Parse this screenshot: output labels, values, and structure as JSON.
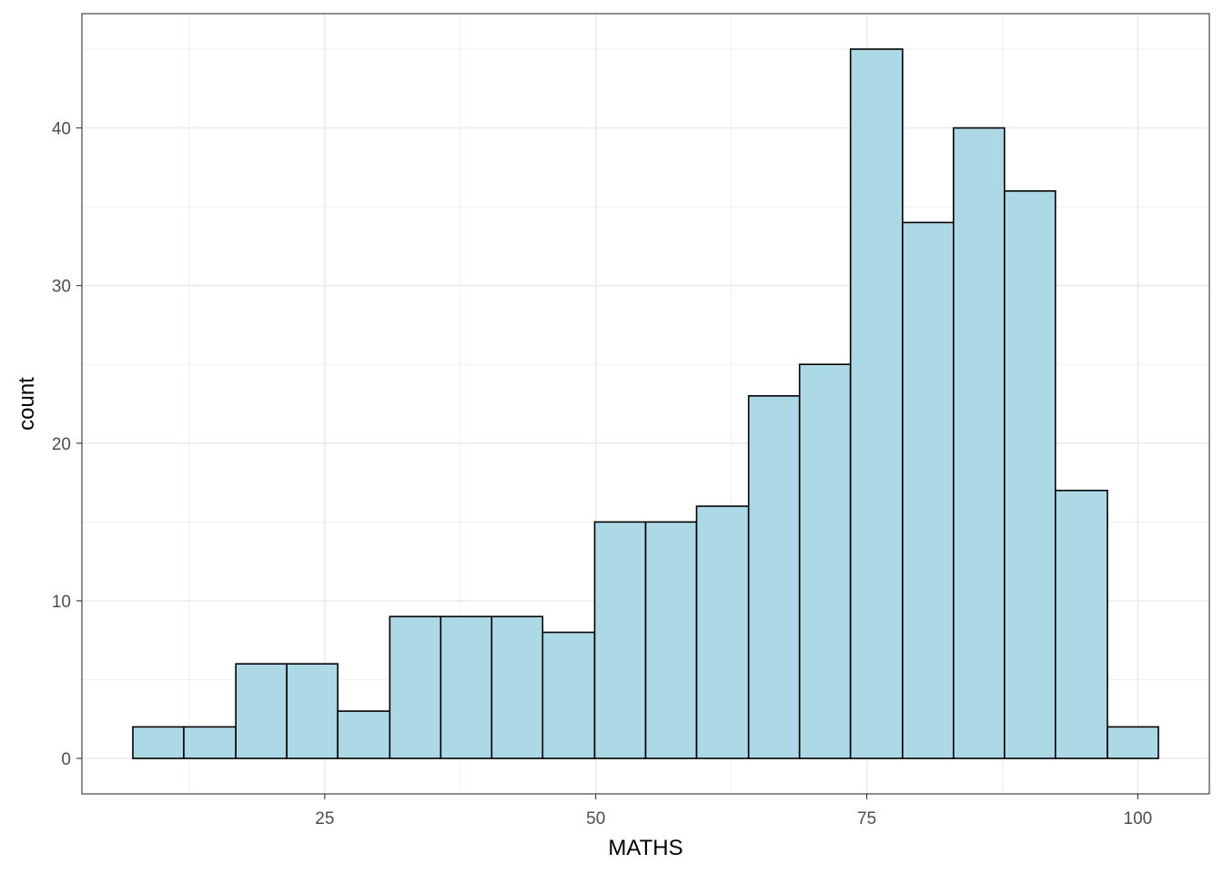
{
  "chart_data": {
    "type": "bar",
    "title": "",
    "xlabel": "MATHS",
    "ylabel": "count",
    "bins": [
      {
        "x0": 7.3,
        "x1": 12.0,
        "count": 2
      },
      {
        "x0": 12.0,
        "x1": 16.8,
        "count": 2
      },
      {
        "x0": 16.8,
        "x1": 21.5,
        "count": 6
      },
      {
        "x0": 21.5,
        "x1": 26.2,
        "count": 6
      },
      {
        "x0": 26.2,
        "x1": 31.0,
        "count": 3
      },
      {
        "x0": 31.0,
        "x1": 35.7,
        "count": 9
      },
      {
        "x0": 35.7,
        "x1": 40.4,
        "count": 9
      },
      {
        "x0": 40.4,
        "x1": 45.1,
        "count": 9
      },
      {
        "x0": 45.1,
        "x1": 49.9,
        "count": 8
      },
      {
        "x0": 49.9,
        "x1": 54.6,
        "count": 15
      },
      {
        "x0": 54.6,
        "x1": 59.3,
        "count": 15
      },
      {
        "x0": 59.3,
        "x1": 64.1,
        "count": 16
      },
      {
        "x0": 64.1,
        "x1": 68.8,
        "count": 23
      },
      {
        "x0": 68.8,
        "x1": 73.5,
        "count": 25
      },
      {
        "x0": 73.5,
        "x1": 78.3,
        "count": 45
      },
      {
        "x0": 78.3,
        "x1": 83.0,
        "count": 34
      },
      {
        "x0": 83.0,
        "x1": 87.7,
        "count": 40
      },
      {
        "x0": 87.7,
        "x1": 92.4,
        "count": 36
      },
      {
        "x0": 92.4,
        "x1": 97.2,
        "count": 17
      },
      {
        "x0": 97.2,
        "x1": 101.9,
        "count": 2
      }
    ],
    "x_ticks": [
      25,
      50,
      75,
      100
    ],
    "y_ticks": [
      0,
      10,
      20,
      30,
      40
    ],
    "xlim": [
      2.6,
      106.6
    ],
    "ylim": [
      -2.25,
      47.25
    ],
    "grid": true,
    "legend": "none",
    "bar_fill": "#add8e6",
    "bar_stroke": "#000000",
    "grid_color": "#ebebeb",
    "panel_border": "#333333"
  }
}
